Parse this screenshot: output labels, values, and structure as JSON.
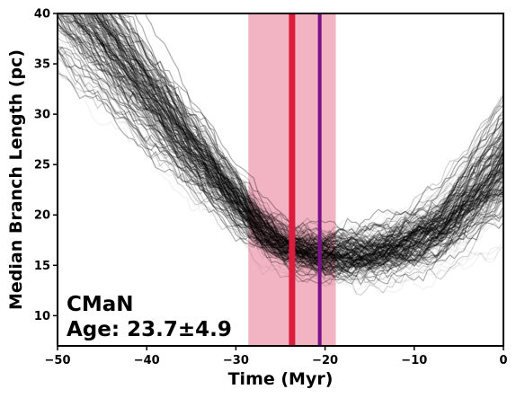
{
  "chart_data": {
    "type": "line",
    "title": "",
    "xlabel": "Time (Myr)",
    "ylabel": "Median Branch Length (pc)",
    "xlim": [
      -50,
      0
    ],
    "ylim": [
      7,
      40
    ],
    "x_ticks": [
      -50,
      -40,
      -30,
      -20,
      -10,
      0
    ],
    "x_tick_labels": [
      "−50",
      "−40",
      "−30",
      "−20",
      "−10",
      "0"
    ],
    "y_ticks": [
      10,
      15,
      20,
      25,
      30,
      35,
      40
    ],
    "y_tick_labels": [
      "10",
      "15",
      "20",
      "25",
      "30",
      "35",
      "40"
    ],
    "grid": false,
    "series_description": "Ensemble of traceback realizations of median branch length vs time",
    "median_curve": {
      "x": [
        -50,
        -45,
        -40,
        -35,
        -30,
        -27,
        -25,
        -23,
        -20,
        -17,
        -15,
        -12,
        -10,
        -7,
        -5,
        -3,
        0
      ],
      "y": [
        43.0,
        37.5,
        32.0,
        26.5,
        21.5,
        18.5,
        17.2,
        16.5,
        16.0,
        16.0,
        16.2,
        16.8,
        17.5,
        18.8,
        20.5,
        22.3,
        25.0
      ]
    },
    "spread": 3.2,
    "age_band": {
      "x0": -28.6,
      "x1": -18.8,
      "color": "#e8748f"
    },
    "age_line": {
      "x": -23.7,
      "color": "#dc1c3c"
    },
    "alt_line": {
      "x": -20.6,
      "color": "#7a0f8a"
    },
    "annotation": {
      "name": "CMaN",
      "age_text": "Age: 23.7±4.9"
    }
  }
}
